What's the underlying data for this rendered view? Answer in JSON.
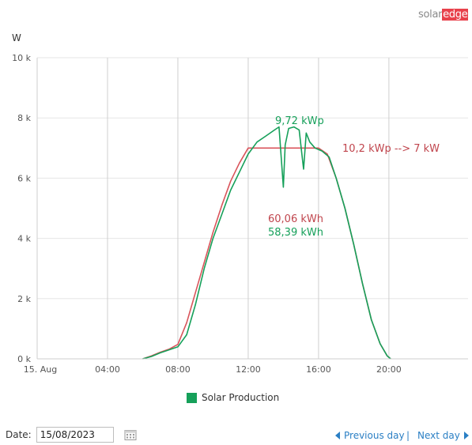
{
  "logo": {
    "part1": "solar",
    "part2": "edge"
  },
  "legend": {
    "label": "Solar Production",
    "color": "#16a05a"
  },
  "date": {
    "label": "Date:",
    "value": "15/08/2023"
  },
  "nav": {
    "prev": "Previous day",
    "separator": "|",
    "next": "Next day"
  },
  "chart_data": {
    "type": "line",
    "ylabel": "W",
    "xlabel": "",
    "xlim": [
      0,
      24.5
    ],
    "ylim": [
      0,
      10000
    ],
    "y_ticks": [
      0,
      2000,
      4000,
      6000,
      8000,
      10000
    ],
    "y_tick_labels": [
      "0 k",
      "2 k",
      "4 k",
      "6 k",
      "8 k",
      "10 k"
    ],
    "x_ticks": [
      0,
      4,
      8,
      12,
      16,
      20
    ],
    "x_tick_labels": [
      "15. Aug",
      "04:00",
      "08:00",
      "12:00",
      "16:00",
      "20:00"
    ],
    "grid": true,
    "series": [
      {
        "name": "Solar Production",
        "color": "#16a05a",
        "x": [
          6.0,
          6.5,
          7.0,
          7.5,
          8.0,
          8.5,
          9.0,
          9.5,
          10.0,
          10.5,
          11.0,
          11.5,
          12.0,
          12.5,
          13.0,
          13.5,
          13.75,
          13.9,
          14.0,
          14.1,
          14.3,
          14.6,
          14.9,
          15.05,
          15.15,
          15.3,
          15.5,
          15.8,
          16.2,
          16.6,
          17.0,
          17.5,
          18.0,
          18.5,
          19.0,
          19.5,
          19.9,
          20.1
        ],
        "y": [
          0,
          80,
          200,
          300,
          400,
          800,
          1800,
          3000,
          4000,
          4800,
          5600,
          6200,
          6800,
          7200,
          7400,
          7600,
          7700,
          6500,
          5700,
          7100,
          7650,
          7700,
          7600,
          6800,
          6300,
          7500,
          7200,
          7000,
          6900,
          6700,
          6000,
          5000,
          3800,
          2500,
          1300,
          500,
          100,
          0
        ]
      },
      {
        "name": "",
        "color": "#d9545b",
        "x": [
          6.0,
          6.5,
          7.0,
          7.5,
          8.0,
          8.5,
          9.0,
          9.5,
          10.0,
          10.5,
          11.0,
          11.5,
          12.0,
          13.0,
          14.0,
          15.0,
          16.0,
          16.5,
          17.0,
          17.5,
          18.0,
          18.5,
          19.0,
          19.5,
          19.9,
          20.1
        ],
        "y": [
          0,
          100,
          220,
          320,
          480,
          1200,
          2200,
          3200,
          4200,
          5100,
          5900,
          6500,
          7000,
          7000,
          7000,
          7000,
          7000,
          6800,
          6000,
          5000,
          3800,
          2500,
          1300,
          500,
          100,
          0
        ]
      }
    ],
    "annotations": [
      {
        "text": "9,72 kWp",
        "color": "#16a05a"
      },
      {
        "text": "10,2 kWp --> 7 kW",
        "color": "#c0454d"
      },
      {
        "text": "60,06 kWh",
        "color": "#c0454d"
      },
      {
        "text": "58,39 kWh",
        "color": "#16a05a"
      }
    ]
  }
}
